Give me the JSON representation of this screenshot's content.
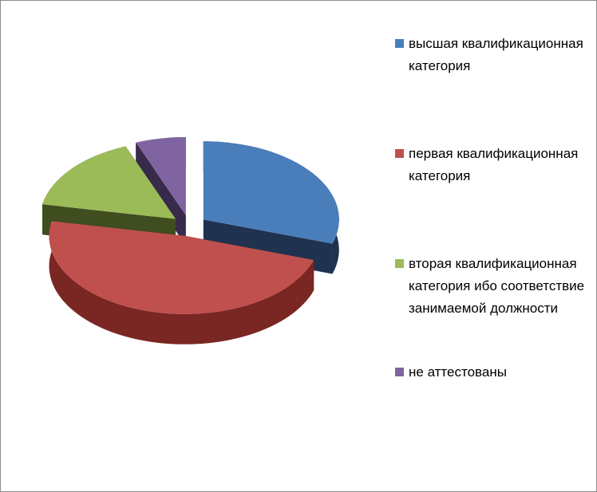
{
  "chart_data": {
    "type": "pie",
    "categories": [
      "высшая квалификационная категория",
      "первая квалификационная категория",
      "вторая квалификационная категория ибо соответствие занимаемой должности",
      "не аттестованы"
    ],
    "values": [
      30,
      48,
      16,
      6
    ],
    "colors": [
      "#4a7ebb",
      "#c0504d",
      "#9bbb59",
      "#8064a2"
    ],
    "side_colors": [
      "#1f3350",
      "#7a2622",
      "#3f4d1f",
      "#372a4a"
    ]
  }
}
